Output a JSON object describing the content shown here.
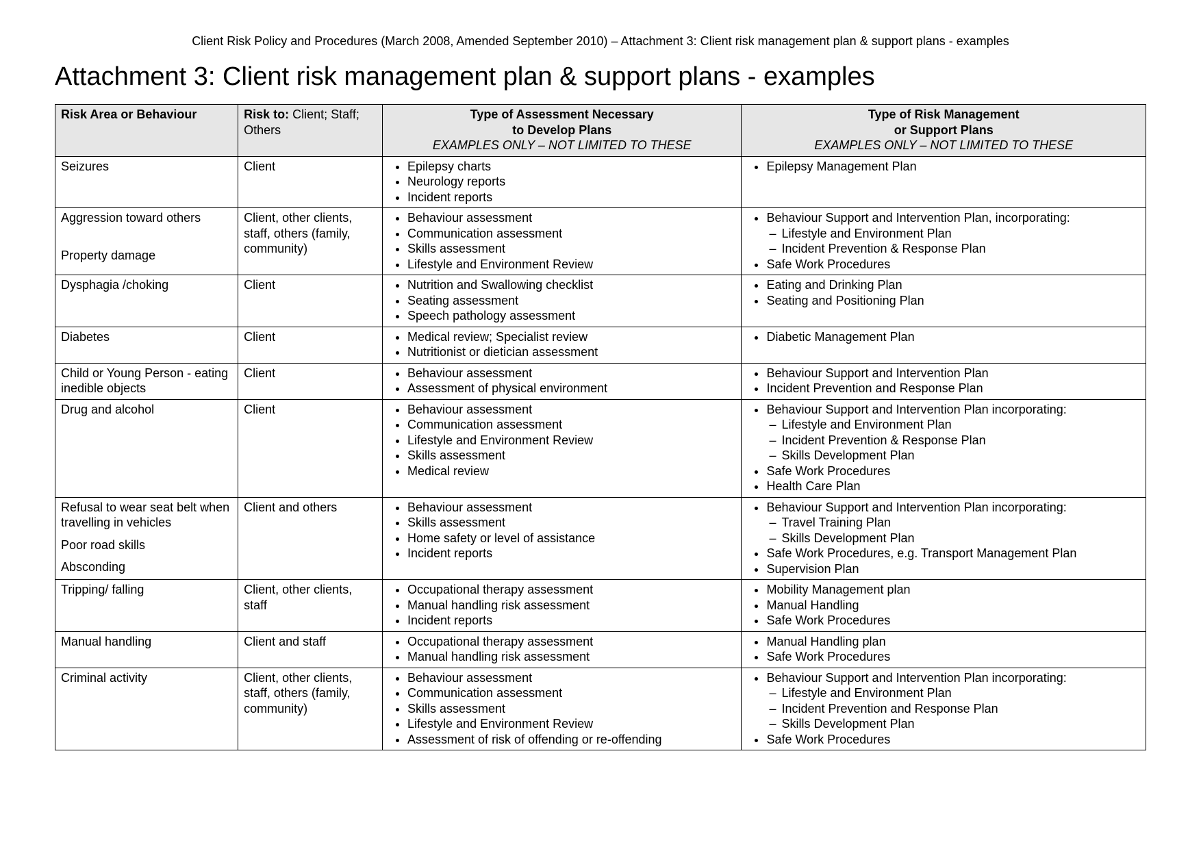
{
  "header": "Client Risk Policy and Procedures (March 2008, Amended September 2010) – Attachment 3: Client risk management plan & support plans - examples",
  "title": "Attachment 3: Client risk management plan & support plans - examples",
  "columns": {
    "c1": "Risk Area or Behaviour",
    "c2_bold": "Risk to:",
    "c2_rest": " Client; Staff; Others",
    "c3_l1": "Type of Assessment Necessary",
    "c3_l2": "to Develop Plans",
    "c3_sub": "EXAMPLES ONLY – NOT LIMITED TO THESE",
    "c4_l1": "Type of Risk Management",
    "c4_l2": "or Support Plans",
    "c4_sub": "EXAMPLES ONLY – NOT LIMITED TO THESE"
  },
  "rows": [
    {
      "area": [
        "Seizures"
      ],
      "risk": "Client",
      "assess": [
        "Epilepsy charts",
        "Neurology reports",
        "Incident reports"
      ],
      "plans": [
        "Epilepsy Management Plan"
      ]
    },
    {
      "area": [
        "Aggression toward others",
        "",
        "Property damage"
      ],
      "risk": "Client, other clients, staff, others (family, community)",
      "assess": [
        "Behaviour assessment",
        "Communication assessment",
        "Skills assessment",
        "Lifestyle and Environment Review"
      ],
      "plans": [
        {
          "t": "Behaviour Support and Intervention Plan, incorporating:",
          "sub": [
            "Lifestyle and Environment Plan",
            "Incident Prevention & Response Plan"
          ]
        },
        "Safe Work Procedures"
      ]
    },
    {
      "area": [
        "Dysphagia /choking"
      ],
      "risk": "Client",
      "assess": [
        "Nutrition and Swallowing checklist",
        "Seating assessment",
        "Speech pathology assessment"
      ],
      "plans": [
        "Eating and Drinking Plan",
        "Seating and Positioning Plan"
      ]
    },
    {
      "area": [
        "Diabetes"
      ],
      "risk": "Client",
      "assess": [
        "Medical review; Specialist review",
        "Nutritionist or dietician assessment"
      ],
      "plans": [
        "Diabetic Management Plan"
      ]
    },
    {
      "area": [
        "Child or Young Person - eating inedible objects"
      ],
      "risk": "Client",
      "assess": [
        "Behaviour assessment",
        "Assessment of physical environment"
      ],
      "plans": [
        "Behaviour Support and Intervention Plan",
        "Incident Prevention and Response Plan"
      ]
    },
    {
      "area": [
        "Drug and alcohol"
      ],
      "risk": "Client",
      "assess": [
        "Behaviour assessment",
        "Communication assessment",
        "Lifestyle and Environment Review",
        "Skills assessment",
        "Medical review"
      ],
      "plans": [
        {
          "t": "Behaviour Support and Intervention Plan incorporating:",
          "sub": [
            "Lifestyle and Environment Plan",
            "Incident Prevention & Response Plan",
            "Skills Development Plan"
          ]
        },
        "Safe Work Procedures",
        "Health Care Plan"
      ]
    },
    {
      "area": [
        "Refusal to wear seat belt when travelling in vehicles",
        "Poor road skills",
        "Absconding"
      ],
      "risk": "Client and others",
      "assess": [
        "Behaviour assessment",
        "Skills assessment",
        "Home safety or level of assistance",
        "Incident reports"
      ],
      "plans": [
        {
          "t": "Behaviour Support and Intervention Plan incorporating:",
          "sub": [
            "Travel Training Plan",
            "Skills Development Plan"
          ]
        },
        "Safe Work Procedures, e.g. Transport Management Plan",
        "Supervision Plan"
      ]
    },
    {
      "area": [
        "Tripping/ falling"
      ],
      "risk": "Client, other clients, staff",
      "assess": [
        "Occupational therapy assessment",
        "Manual handling risk assessment",
        "Incident reports"
      ],
      "plans": [
        "Mobility Management plan",
        "Manual Handling",
        "Safe Work Procedures"
      ]
    },
    {
      "area": [
        "Manual handling"
      ],
      "risk": "Client and staff",
      "assess": [
        "Occupational therapy assessment",
        "Manual handling risk assessment"
      ],
      "plans": [
        "Manual Handling plan",
        "Safe Work Procedures"
      ]
    },
    {
      "area": [
        "Criminal activity"
      ],
      "risk": "Client, other clients, staff, others (family, community)",
      "assess": [
        "Behaviour assessment",
        "Communication assessment",
        "Skills assessment",
        "Lifestyle and Environment Review",
        "Assessment of risk of offending or re-offending"
      ],
      "plans": [
        {
          "t": "Behaviour Support and Intervention Plan incorporating:",
          "sub": [
            "Lifestyle and Environment Plan",
            "Incident Prevention and Response Plan",
            "Skills Development Plan"
          ]
        },
        "Safe Work Procedures"
      ]
    }
  ]
}
